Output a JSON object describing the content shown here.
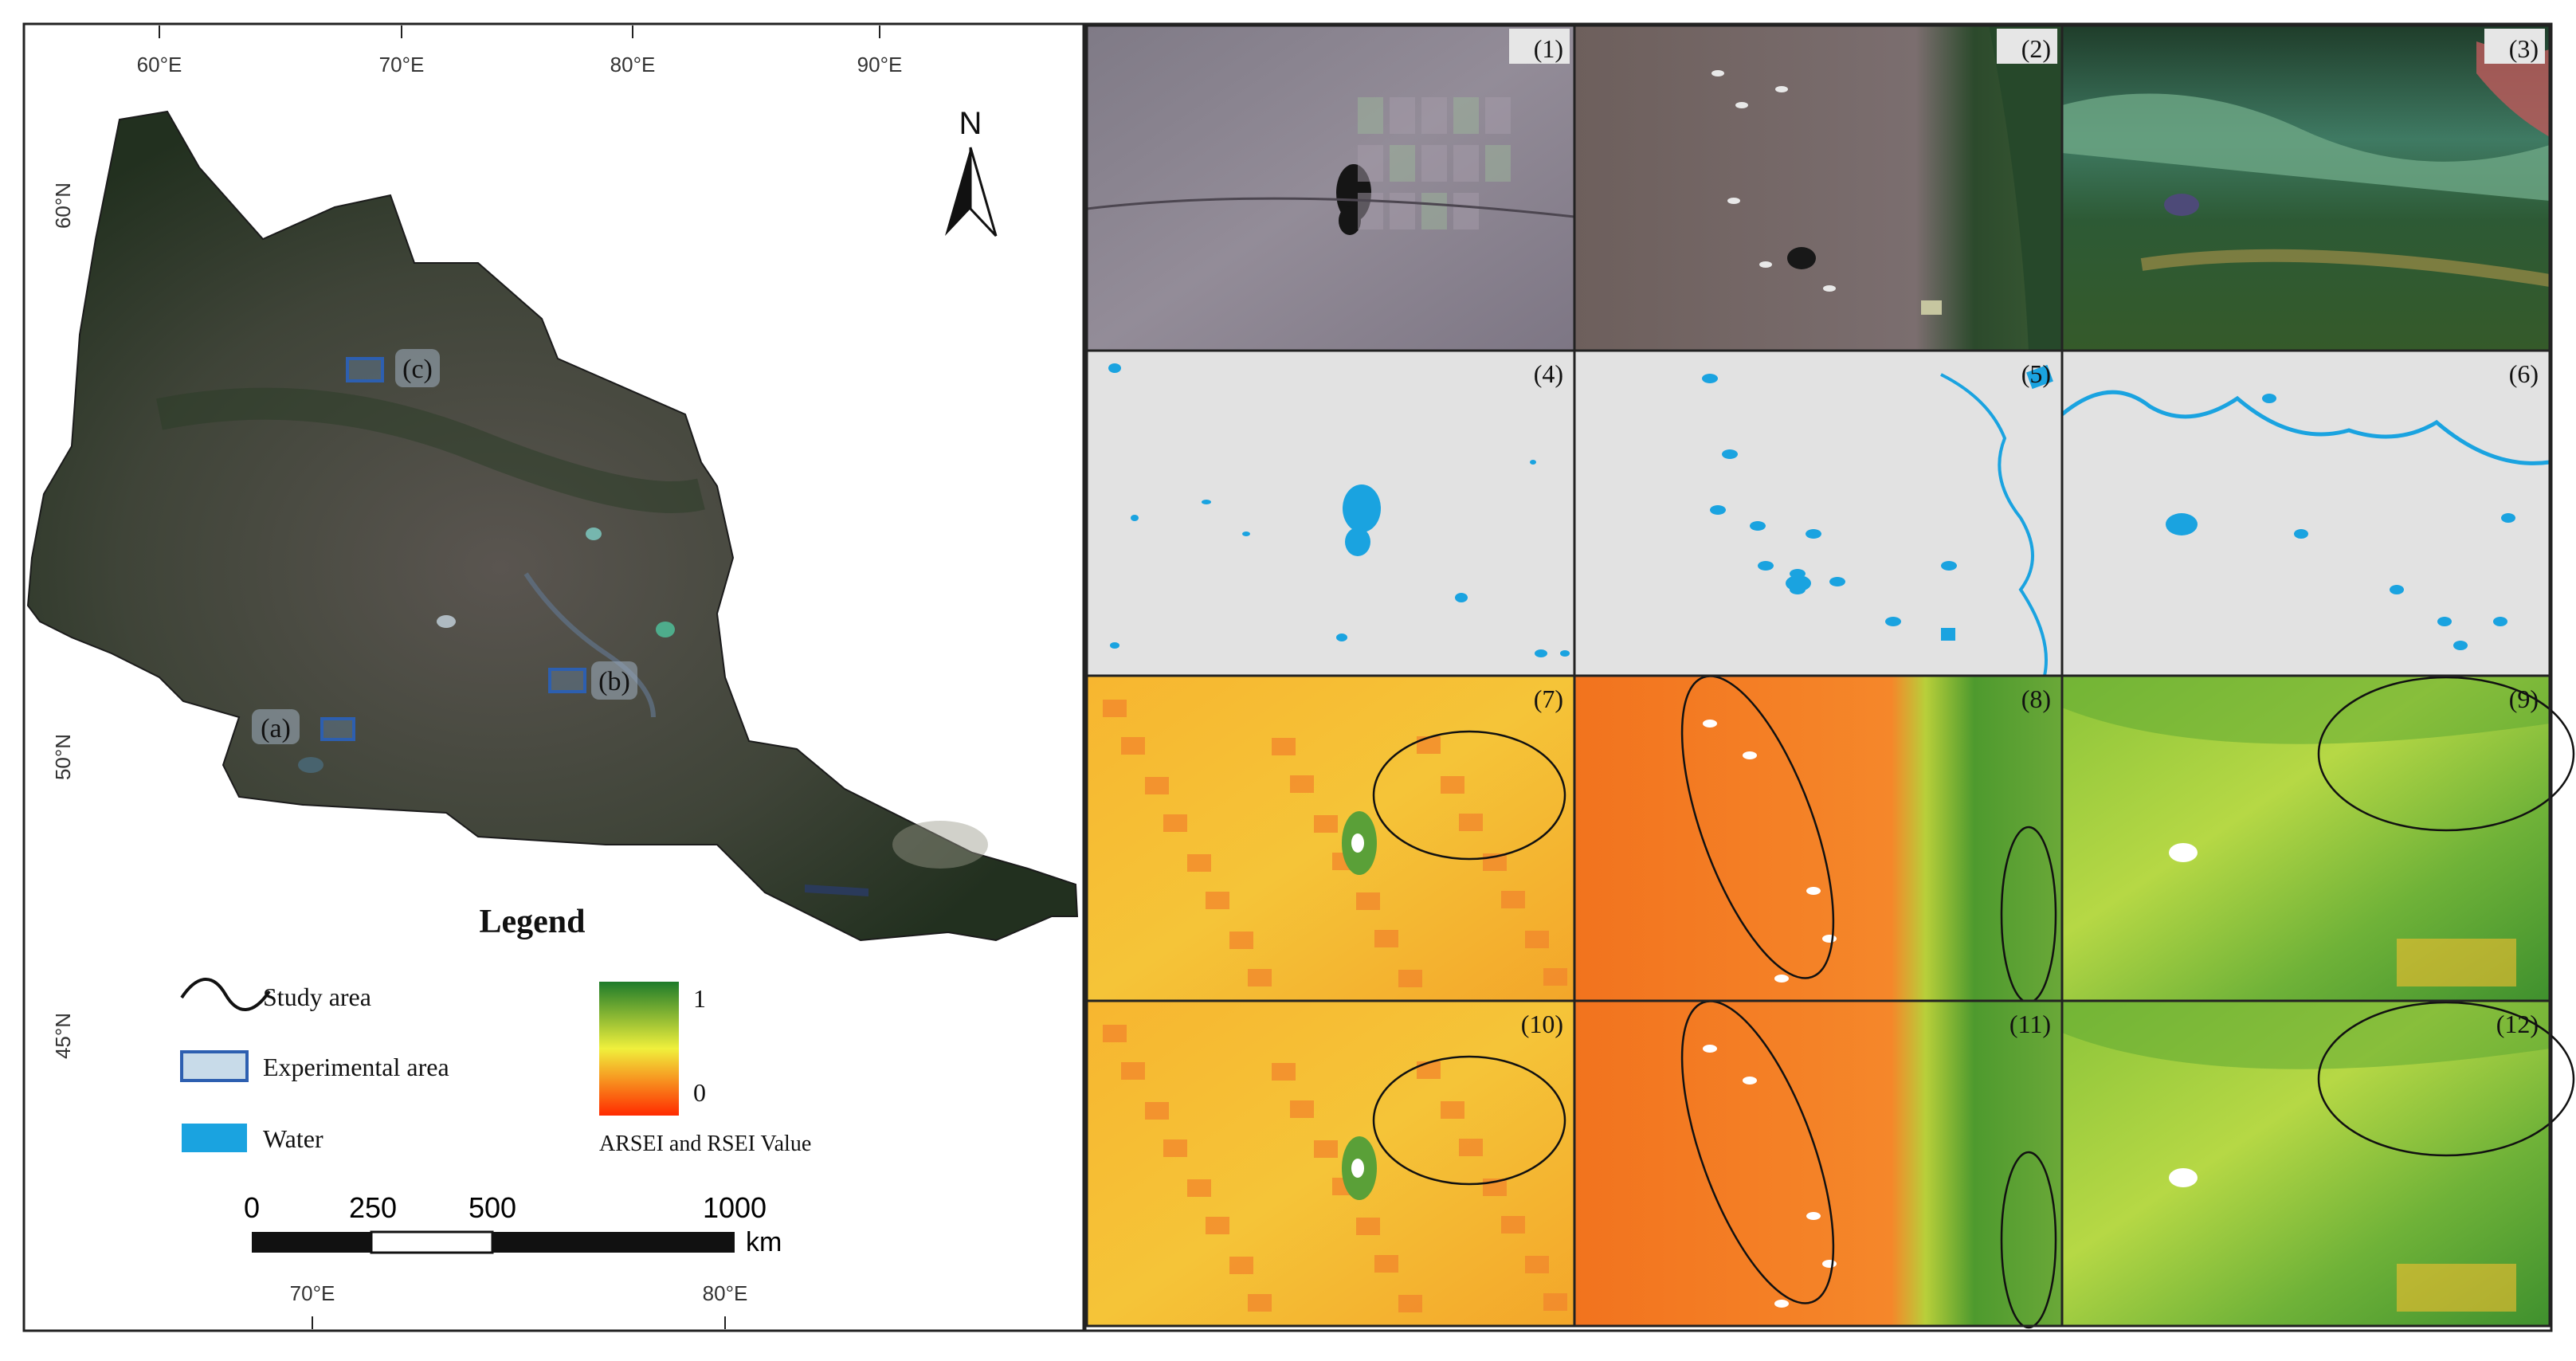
{
  "map": {
    "longitude_labels_top": [
      "60°E",
      "70°E",
      "80°E",
      "90°E"
    ],
    "longitude_labels_bottom": [
      "70°E",
      "80°E"
    ],
    "latitude_labels": [
      "60°N",
      "50°N",
      "45°N"
    ],
    "north_arrow_label": "N",
    "experimental_area_labels": [
      "(a)",
      "(b)",
      "(c)"
    ]
  },
  "legend": {
    "title": "Legend",
    "items": [
      {
        "label": "Study area",
        "symbol": "wave-line-icon"
      },
      {
        "label": "Experimental area",
        "symbol": "rectangle-icon",
        "color": "#2d5fb0"
      },
      {
        "label": "Water",
        "symbol": "water-swatch-icon",
        "color": "#1aa3e0"
      }
    ],
    "colorbar": {
      "max_label": "1",
      "min_label": "0",
      "caption": "ARSEI and RSEI Value",
      "colors": [
        "#1e7b2a",
        "#f0f03c",
        "#ff2a00"
      ]
    }
  },
  "scale_bar": {
    "ticks": [
      "0",
      "250",
      "500",
      "1000"
    ],
    "unit": "km"
  },
  "panels": [
    {
      "label": "(1)",
      "kind": "satellite"
    },
    {
      "label": "(2)",
      "kind": "satellite"
    },
    {
      "label": "(3)",
      "kind": "satellite"
    },
    {
      "label": "(4)",
      "kind": "water-mask"
    },
    {
      "label": "(5)",
      "kind": "water-mask"
    },
    {
      "label": "(6)",
      "kind": "water-mask"
    },
    {
      "label": "(7)",
      "kind": "index"
    },
    {
      "label": "(8)",
      "kind": "index"
    },
    {
      "label": "(9)",
      "kind": "index"
    },
    {
      "label": "(10)",
      "kind": "index"
    },
    {
      "label": "(11)",
      "kind": "index"
    },
    {
      "label": "(12)",
      "kind": "index"
    }
  ],
  "colors": {
    "water": "#1aa3e0",
    "mask_background": "#e2e2e2",
    "experimental_box": "#2d5fb0"
  }
}
